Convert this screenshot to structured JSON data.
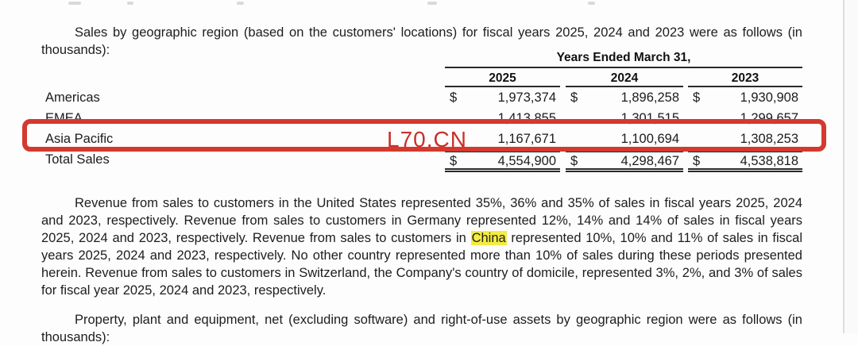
{
  "intro_paragraph": "Sales by geographic region (based on the customers' locations) for fiscal years 2025, 2024 and 2023 were as follows (in thousands):",
  "table": {
    "span_header": "Years Ended March 31,",
    "columns": [
      "2025",
      "2024",
      "2023"
    ],
    "rows": [
      {
        "label": "Americas",
        "currency": "$",
        "values": [
          "1,973,374",
          "1,896,258",
          "1,930,908"
        ]
      },
      {
        "label": "EMEA",
        "currency": "",
        "values": [
          "1,413,855",
          "1,301,515",
          "1,299,657"
        ]
      },
      {
        "label": "Asia Pacific",
        "currency": "",
        "values": [
          "1,167,671",
          "1,100,694",
          "1,308,253"
        ]
      },
      {
        "label": "Total Sales",
        "currency": "$",
        "values": [
          "4,554,900",
          "4,298,467",
          "4,538,818"
        ]
      }
    ]
  },
  "annotations": {
    "watermark_text": "L70.CN",
    "watermark_color": "#c9302a",
    "highlight_box_color": "#d4392f",
    "term_highlight_color": "#f4ec3f"
  },
  "revenue_paragraph": {
    "before_highlight": "Revenue from sales to customers in the United States represented 35%, 36% and 35% of sales in fiscal years 2025, 2024 and 2023, respectively. Revenue from sales to customers in Germany represented 12%, 14% and 14% of sales in fiscal years 2025, 2024 and 2023, respectively. Revenue from sales to customers in ",
    "highlighted_term": "China",
    "after_highlight": " represented 10%, 10% and 11% of sales in fiscal years 2025, 2024 and 2023, respectively. No other country represented more than 10% of sales during these periods presented herein. Revenue from sales to customers in Switzerland, the Company's country of domicile, represented 3%, 2%, and 3% of sales for fiscal year 2025, 2024 and 2023, respectively."
  },
  "ppe_paragraph": "Property, plant and equipment, net (excluding software) and right-of-use assets by geographic region were as follows (in thousands):"
}
